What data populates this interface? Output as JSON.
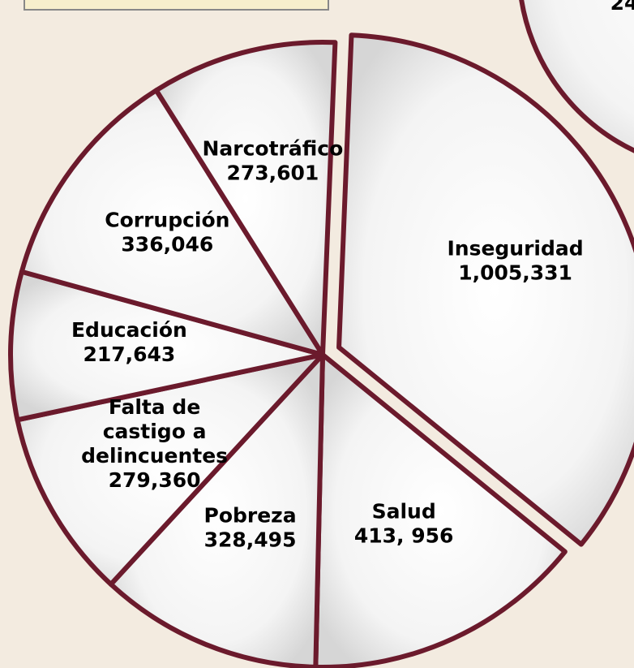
{
  "chart_data": {
    "type": "pie",
    "categories": [
      "Inseguridad",
      "Salud",
      "Pobreza",
      "Falta de castigo a delincuentes",
      "Educación",
      "Corrupción",
      "Narcotráfico"
    ],
    "values": [
      1005331,
      413956,
      328495,
      279360,
      217643,
      336046,
      273601
    ],
    "value_labels": [
      "1,005,331",
      "413, 956",
      "328,495",
      "279,360",
      "217,643",
      "336,046",
      "273,601"
    ],
    "exploded": [
      "Inseguridad"
    ],
    "color": "#ffffff",
    "edge_color": "#6b1a2c"
  },
  "fragment_text": "24"
}
